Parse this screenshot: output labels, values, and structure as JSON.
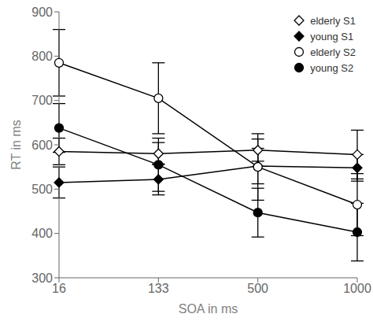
{
  "chart_data": {
    "type": "line",
    "xlabel": "SOA in ms",
    "ylabel": "RT in ms",
    "categories": [
      "16",
      "133",
      "500",
      "1000"
    ],
    "series": [
      {
        "name": "elderly S1",
        "color": "#000000",
        "marker": "diamond_open",
        "line_style": "solid",
        "values": [
          585,
          580,
          588,
          578
        ],
        "errors": [
          30,
          25,
          25,
          55
        ]
      },
      {
        "name": "young S1",
        "color": "#000000",
        "marker": "diamond",
        "line_style": "solid",
        "values": [
          515,
          522,
          552,
          548
        ],
        "errors": [
          35,
          35,
          40,
          30
        ]
      },
      {
        "name": "elderly S2",
        "color": "#000000",
        "marker": "circle_open",
        "line_style": "solid",
        "values": [
          785,
          705,
          550,
          465
        ],
        "errors": [
          75,
          80,
          75,
          70
        ]
      },
      {
        "name": "young S2",
        "color": "#000000",
        "marker": "circle",
        "line_style": "solid",
        "values": [
          638,
          555,
          447,
          403
        ],
        "errors": [
          55,
          60,
          55,
          65
        ]
      }
    ],
    "ylim": [
      300,
      900
    ],
    "yticks": [
      300,
      400,
      500,
      600,
      700,
      800,
      900
    ],
    "grid": false,
    "legend": "upper right"
  }
}
